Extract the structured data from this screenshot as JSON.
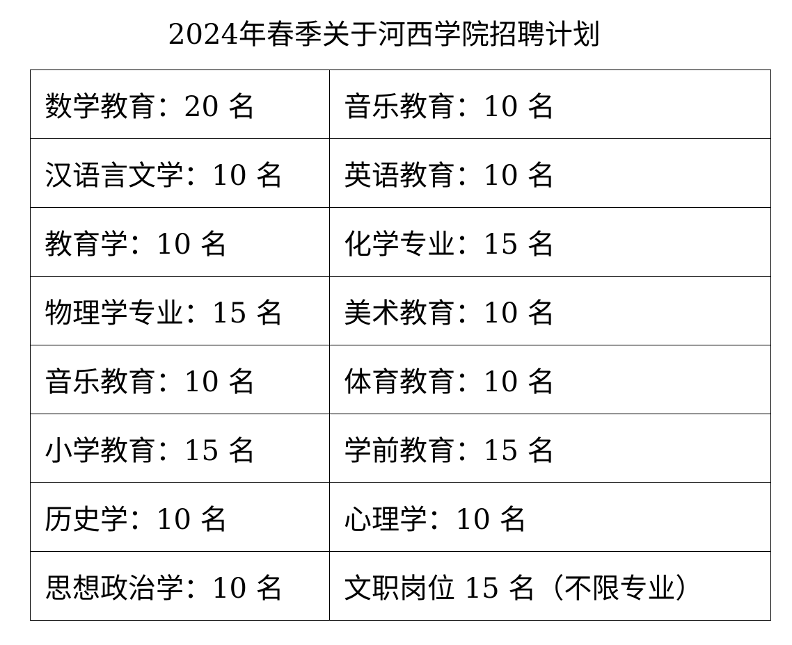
{
  "title": "2024年春季关于河西学院招聘计划",
  "rows": [
    [
      "数学教育：20 名",
      "音乐教育：10 名"
    ],
    [
      "汉语言文学：10 名",
      "英语教育：10 名"
    ],
    [
      "教育学：10 名",
      "化学专业：15 名"
    ],
    [
      "物理学专业：15 名",
      "美术教育：10 名"
    ],
    [
      "音乐教育：10 名",
      "体育教育：10 名"
    ],
    [
      "小学教育：15 名",
      "学前教育：15 名"
    ],
    [
      "历史学：10 名",
      "心理学：10 名"
    ],
    [
      "思想政治学：10 名",
      "文职岗位 15 名（不限专业）"
    ]
  ]
}
